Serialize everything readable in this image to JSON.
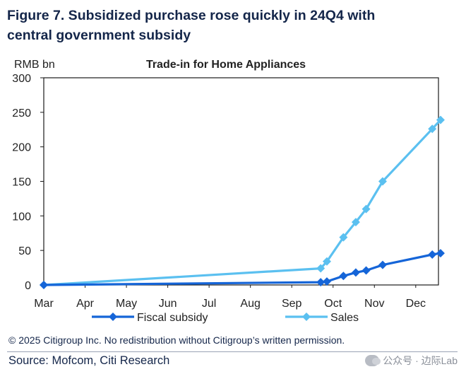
{
  "header": {
    "title_line1": "Figure 7. Subsidized purchase rose quickly in 24Q4 with",
    "title_line2": "central government subsidy"
  },
  "chart_data": {
    "type": "line",
    "title": "Trade-in for Home Appliances",
    "ylabel": "RMB bn",
    "xlabel": "",
    "ylim": [
      0,
      300
    ],
    "yticks": [
      0,
      50,
      100,
      150,
      200,
      250,
      300
    ],
    "xlim": [
      0,
      9.55
    ],
    "month_ticks": [
      {
        "label": "Mar",
        "x": 0
      },
      {
        "label": "Apr",
        "x": 1
      },
      {
        "label": "May",
        "x": 2
      },
      {
        "label": "Jun",
        "x": 3
      },
      {
        "label": "Jul",
        "x": 4
      },
      {
        "label": "Aug",
        "x": 5
      },
      {
        "label": "Sep",
        "x": 6
      },
      {
        "label": "Oct",
        "x": 7
      },
      {
        "label": "Nov",
        "x": 8
      },
      {
        "label": "Dec",
        "x": 9
      }
    ],
    "series": [
      {
        "name": "Fiscal subsidy",
        "color": "#1565d8",
        "points": [
          [
            0,
            0
          ],
          [
            6.7,
            4
          ],
          [
            6.85,
            5
          ],
          [
            7.25,
            13
          ],
          [
            7.55,
            18
          ],
          [
            7.8,
            21
          ],
          [
            8.2,
            29
          ],
          [
            9.4,
            44
          ],
          [
            9.6,
            46
          ]
        ]
      },
      {
        "name": "Sales",
        "color": "#5bc0f0",
        "points": [
          [
            0,
            0
          ],
          [
            6.7,
            24
          ],
          [
            6.85,
            34
          ],
          [
            7.25,
            69
          ],
          [
            7.55,
            91
          ],
          [
            7.8,
            110
          ],
          [
            8.2,
            150
          ],
          [
            9.4,
            226
          ],
          [
            9.6,
            239
          ]
        ]
      }
    ],
    "legend": {
      "placement": "bottom"
    }
  },
  "footer": {
    "copyright": "© 2025 Citigroup Inc. No redistribution without Citigroup’s written permission.",
    "source": "Source: Mofcom, Citi Research",
    "watermark": "公众号 · 边际Lab"
  }
}
